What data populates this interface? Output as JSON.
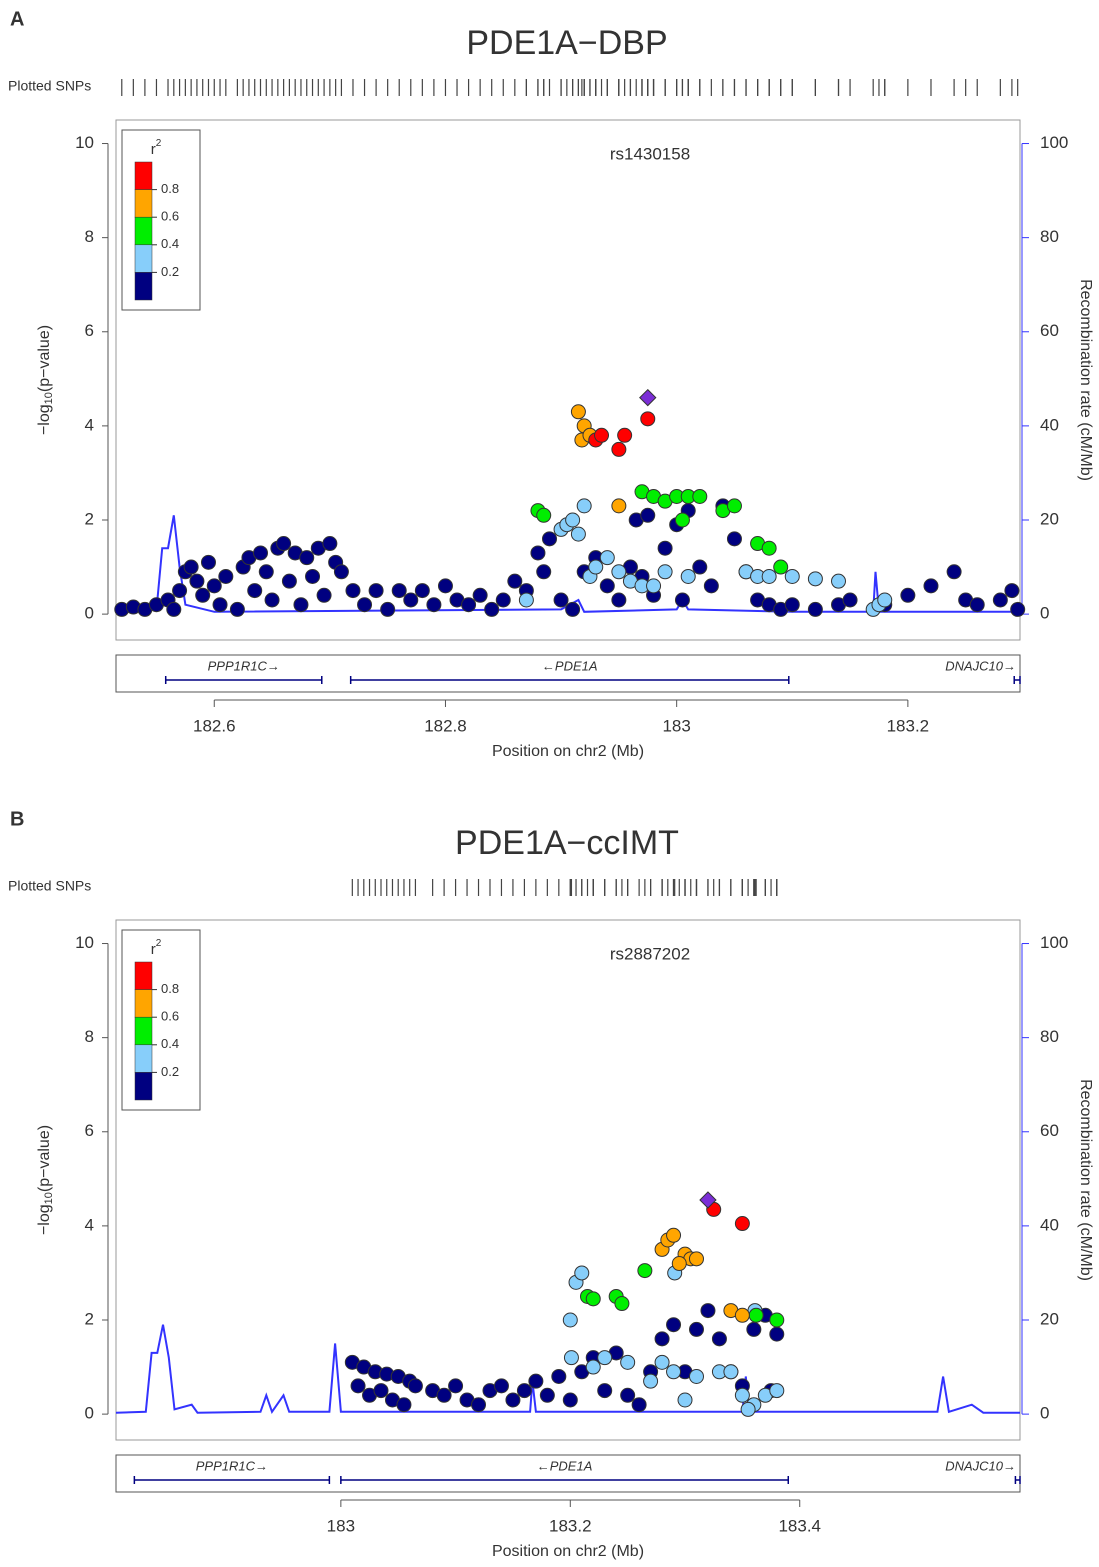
{
  "chart_data": [
    {
      "type": "scatter",
      "panel_label": "A",
      "title": "PDE1A−DBP",
      "rug_label": "Plotted SNPs",
      "annotation": "rs1430158",
      "xlabel": "Position on chr2 (Mb)",
      "ylabel": {
        "pre": "−log",
        "sub": "10",
        "post": "(p−value)"
      },
      "y2label": "Recombination rate (cM/Mb)",
      "xlim": [
        182.515,
        183.297
      ],
      "xticks": [
        182.6,
        182.8,
        {
          "value": 183,
          "label": "183"
        },
        183.2
      ],
      "ylim": [
        -0.55,
        10.5
      ],
      "yticks": [
        0,
        2,
        4,
        6,
        8,
        10
      ],
      "y2lim": [
        -5.5,
        105
      ],
      "y2ticks": [
        0,
        20,
        40,
        60,
        80,
        100
      ],
      "legend": {
        "title": "r",
        "title_sup": "2",
        "breaks": [
          0.8,
          0.6,
          0.4,
          0.2
        ],
        "colors": [
          "#ff0000",
          "#ffa500",
          "#00ee00",
          "#87cefa",
          "#000080"
        ]
      },
      "series": [
        {
          "color": "#000080",
          "x": [
            182.52,
            182.53,
            182.54,
            182.55,
            182.56,
            182.565,
            182.57,
            182.575,
            182.58,
            182.585,
            182.59,
            182.595,
            182.6,
            182.605,
            182.61,
            182.62,
            182.625,
            182.63,
            182.635,
            182.64,
            182.645,
            182.65,
            182.655,
            182.66,
            182.665,
            182.67,
            182.675,
            182.68,
            182.685,
            182.69,
            182.695,
            182.7,
            182.705,
            182.71,
            182.72,
            182.73,
            182.74,
            182.75,
            182.76,
            182.77,
            182.78,
            182.79,
            182.8,
            182.81,
            182.82,
            182.83,
            182.84,
            182.85,
            182.86,
            182.87,
            182.88,
            182.885,
            182.89,
            182.9,
            182.91,
            182.92,
            182.93,
            182.94,
            182.95,
            182.96,
            182.965,
            182.97,
            182.975,
            182.98,
            182.99,
            183.0,
            183.005,
            183.01,
            183.02,
            183.03,
            183.04,
            183.05,
            183.06,
            183.07,
            183.08,
            183.09,
            183.1,
            183.12,
            183.14,
            183.15,
            183.18,
            183.2,
            183.22,
            183.24,
            183.25,
            183.26,
            183.28,
            183.29,
            183.295
          ],
          "values": [
            0.1,
            0.15,
            0.1,
            0.2,
            0.3,
            0.1,
            0.5,
            0.9,
            1.0,
            0.7,
            0.4,
            1.1,
            0.6,
            0.2,
            0.8,
            0.1,
            1.0,
            1.2,
            0.5,
            1.3,
            0.9,
            0.3,
            1.4,
            1.5,
            0.7,
            1.3,
            0.2,
            1.2,
            0.8,
            1.4,
            0.4,
            1.5,
            1.1,
            0.9,
            0.5,
            0.2,
            0.5,
            0.1,
            0.5,
            0.3,
            0.5,
            0.2,
            0.6,
            0.3,
            0.2,
            0.4,
            0.1,
            0.3,
            0.7,
            0.5,
            1.3,
            0.9,
            1.6,
            0.3,
            0.1,
            0.9,
            1.2,
            0.6,
            0.3,
            1.0,
            2.0,
            0.8,
            2.1,
            0.4,
            1.4,
            1.9,
            0.3,
            2.2,
            1.0,
            0.6,
            2.3,
            1.6,
            0.9,
            0.3,
            0.2,
            0.1,
            0.2,
            0.1,
            0.2,
            0.3,
            0.2,
            0.4,
            0.6,
            0.9,
            0.3,
            0.2,
            0.3,
            0.5,
            0.1
          ]
        },
        {
          "color": "#87cefa",
          "x": [
            182.87,
            182.9,
            182.905,
            182.91,
            182.915,
            182.92,
            182.925,
            182.93,
            182.94,
            182.95,
            182.96,
            182.97,
            182.98,
            182.99,
            183.01,
            183.06,
            183.07,
            183.08,
            183.1,
            183.12,
            183.14,
            183.17,
            183.175,
            183.18
          ],
          "values": [
            0.3,
            1.8,
            1.9,
            2.0,
            1.7,
            2.3,
            0.8,
            1.0,
            1.2,
            0.9,
            0.7,
            0.6,
            0.6,
            0.9,
            0.8,
            0.9,
            0.8,
            0.8,
            0.8,
            0.75,
            0.7,
            0.1,
            0.2,
            0.3
          ]
        },
        {
          "color": "#00ee00",
          "x": [
            182.88,
            182.885,
            182.97,
            182.98,
            182.99,
            183.0,
            183.01,
            183.02,
            183.04,
            183.05,
            183.07,
            183.08,
            183.09,
            183.005
          ],
          "values": [
            2.2,
            2.1,
            2.6,
            2.5,
            2.4,
            2.5,
            2.5,
            2.5,
            2.2,
            2.3,
            1.5,
            1.4,
            1.0,
            2.0
          ]
        },
        {
          "color": "#ffa500",
          "x": [
            182.915,
            182.92,
            182.918,
            182.925,
            182.95
          ],
          "values": [
            4.3,
            4.0,
            3.7,
            3.8,
            2.3
          ]
        },
        {
          "color": "#ff0000",
          "x": [
            182.93,
            182.935,
            182.95,
            182.955,
            182.975
          ],
          "values": [
            3.7,
            3.8,
            3.5,
            3.8,
            4.15
          ]
        },
        {
          "color": "#7b2ed6",
          "marker": "diamond",
          "x": [
            182.975
          ],
          "values": [
            4.6
          ]
        }
      ],
      "recombination": {
        "color": "#3333ff",
        "axis": "y2",
        "x": [
          182.515,
          182.55,
          182.555,
          182.56,
          182.565,
          182.57,
          182.575,
          182.6,
          182.9,
          182.915,
          182.92,
          183.0,
          183.005,
          183.01,
          183.1,
          183.17,
          183.172,
          183.175,
          183.297
        ],
        "values": [
          0.5,
          1,
          14,
          14,
          21,
          10,
          2,
          0.5,
          1,
          3,
          0.5,
          1,
          3,
          1,
          0.5,
          0.5,
          9,
          0.5,
          0.5
        ]
      },
      "genes": [
        {
          "label": "PPP1R1C→",
          "start": 182.558,
          "end": 182.693
        },
        {
          "label": "←PDE1A",
          "start": 182.718,
          "end": 183.097
        },
        {
          "label": "DNAJC10→",
          "start": 183.292,
          "end": 183.297
        }
      ]
    },
    {
      "type": "scatter",
      "panel_label": "B",
      "title": "PDE1A−ccIMT",
      "rug_label": "Plotted SNPs",
      "annotation": "rs2887202",
      "xlabel": "Position on chr2 (Mb)",
      "ylabel": {
        "pre": "−log",
        "sub": "10",
        "post": "(p−value)"
      },
      "y2label": "Recombination rate (cM/Mb)",
      "xlim": [
        182.804,
        183.592
      ],
      "xticks": [
        {
          "value": 183,
          "label": "183"
        },
        183.2,
        183.4
      ],
      "ylim": [
        -0.55,
        10.5
      ],
      "yticks": [
        0,
        2,
        4,
        6,
        8,
        10
      ],
      "y2lim": [
        -5.5,
        105
      ],
      "y2ticks": [
        0,
        20,
        40,
        60,
        80,
        100
      ],
      "legend": {
        "title": "r",
        "title_sup": "2",
        "breaks": [
          0.8,
          0.6,
          0.4,
          0.2
        ],
        "colors": [
          "#ff0000",
          "#ffa500",
          "#00ee00",
          "#87cefa",
          "#000080"
        ]
      },
      "series": [
        {
          "color": "#000080",
          "x": [
            183.01,
            183.02,
            183.03,
            183.04,
            183.05,
            183.06,
            183.015,
            183.025,
            183.035,
            183.045,
            183.055,
            183.065,
            183.08,
            183.09,
            183.1,
            183.11,
            183.12,
            183.13,
            183.14,
            183.15,
            183.16,
            183.17,
            183.18,
            183.19,
            183.2,
            183.21,
            183.22,
            183.23,
            183.24,
            183.25,
            183.26,
            183.27,
            183.28,
            183.29,
            183.3,
            183.31,
            183.32,
            183.33,
            183.34,
            183.35,
            183.36,
            183.37,
            183.38,
            183.375
          ],
          "values": [
            1.1,
            1.0,
            0.9,
            0.85,
            0.8,
            0.7,
            0.6,
            0.4,
            0.5,
            0.3,
            0.2,
            0.6,
            0.5,
            0.4,
            0.6,
            0.3,
            0.2,
            0.5,
            0.6,
            0.3,
            0.5,
            0.7,
            0.4,
            0.8,
            0.3,
            0.9,
            1.2,
            0.5,
            1.3,
            0.4,
            0.2,
            0.9,
            1.6,
            1.9,
            0.9,
            1.8,
            2.2,
            1.6,
            0.9,
            0.6,
            1.8,
            2.1,
            1.7,
            0.5
          ]
        },
        {
          "color": "#87cefa",
          "x": [
            183.2,
            183.205,
            183.21,
            183.201,
            183.22,
            183.23,
            183.25,
            183.27,
            183.28,
            183.29,
            183.3,
            183.31,
            183.33,
            183.34,
            183.35,
            183.36,
            183.37,
            183.38,
            183.355,
            183.291,
            183.361
          ],
          "values": [
            2.0,
            2.8,
            3.0,
            1.2,
            1.0,
            1.2,
            1.1,
            0.7,
            1.1,
            0.9,
            0.3,
            0.8,
            0.9,
            0.9,
            0.4,
            0.2,
            0.4,
            0.5,
            0.1,
            3.0,
            2.2
          ]
        },
        {
          "color": "#00ee00",
          "x": [
            183.215,
            183.22,
            183.24,
            183.245,
            183.265,
            183.362,
            183.38
          ],
          "values": [
            2.5,
            2.45,
            2.5,
            2.35,
            3.05,
            2.1,
            2.0
          ]
        },
        {
          "color": "#ffa500",
          "x": [
            183.28,
            183.285,
            183.29,
            183.3,
            183.305,
            183.31,
            183.295,
            183.34,
            183.35
          ],
          "values": [
            3.5,
            3.7,
            3.8,
            3.4,
            3.3,
            3.3,
            3.2,
            2.2,
            2.1
          ]
        },
        {
          "color": "#ff0000",
          "x": [
            183.325,
            183.35
          ],
          "values": [
            4.35,
            4.05
          ]
        },
        {
          "color": "#7b2ed6",
          "marker": "diamond",
          "x": [
            183.32
          ],
          "values": [
            4.55
          ]
        }
      ],
      "recombination": {
        "color": "#3333ff",
        "axis": "y2",
        "x": [
          182.804,
          182.83,
          182.835,
          182.84,
          182.845,
          182.85,
          182.855,
          182.87,
          182.875,
          182.93,
          182.935,
          182.94,
          182.95,
          182.955,
          182.99,
          182.995,
          183.0,
          183.165,
          183.167,
          183.17,
          183.35,
          183.353,
          183.356,
          183.52,
          183.525,
          183.53,
          183.55,
          183.56,
          183.592
        ],
        "values": [
          0.3,
          0.5,
          13,
          13,
          19,
          12,
          1,
          2,
          0.3,
          0.5,
          4,
          0.5,
          4,
          0.5,
          0.5,
          15,
          0.5,
          0.5,
          7,
          0.5,
          0.5,
          8,
          0.5,
          0.5,
          8,
          0.5,
          2,
          0.3,
          0.3
        ]
      },
      "genes": [
        {
          "label": "PPP1R1C→",
          "start": 182.82,
          "end": 182.99
        },
        {
          "label": "←PDE1A",
          "start": 183.0,
          "end": 183.39
        },
        {
          "label": "DNAJC10→",
          "start": 183.588,
          "end": 183.592
        }
      ]
    }
  ]
}
